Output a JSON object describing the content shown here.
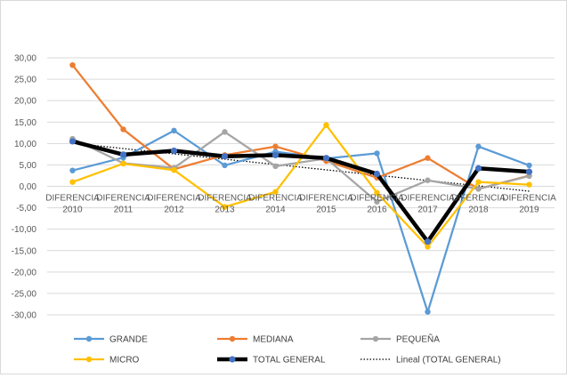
{
  "chart_data": {
    "type": "line",
    "categories": [
      [
        "DIFERENCIA",
        "2010"
      ],
      [
        "DIFERENCIA",
        "2011"
      ],
      [
        "DIFERENCIA",
        "2012"
      ],
      [
        "DIFERENCIA",
        "2013"
      ],
      [
        "DIFERENCIA",
        "2014"
      ],
      [
        "DIFERENCIA",
        "2015"
      ],
      [
        "DIFERENCIA",
        "2016"
      ],
      [
        "DIFERENCIA",
        "2017"
      ],
      [
        "DIFERENCIA",
        "2018"
      ],
      [
        "DIFERENCIA",
        "2019"
      ]
    ],
    "ylim": [
      -30,
      30
    ],
    "yticks": [
      "30,00",
      "25,00",
      "20,00",
      "15,00",
      "10,00",
      "5,00",
      "0,00",
      "-5,00",
      "-10,00",
      "-15,00",
      "-20,00",
      "-25,00",
      "-30,00"
    ],
    "grid": true,
    "legend_position": "bottom",
    "series": [
      {
        "name": "GRANDE",
        "color": "#5b9bd5",
        "values": [
          3.7,
          6.7,
          13.0,
          4.9,
          8.1,
          6.5,
          7.7,
          -29.3,
          9.3,
          4.9
        ]
      },
      {
        "name": "MEDIANA",
        "color": "#ed7d31",
        "values": [
          28.3,
          13.3,
          4.0,
          7.3,
          9.3,
          5.9,
          2.0,
          6.6,
          -0.6,
          2.5
        ]
      },
      {
        "name": "PEQUEÑA",
        "color": "#a5a5a5",
        "values": [
          11.1,
          5.4,
          4.3,
          12.7,
          4.7,
          6.5,
          -3.6,
          1.4,
          -0.6,
          2.4
        ]
      },
      {
        "name": "MICRO",
        "color": "#ffc000",
        "values": [
          1.0,
          5.3,
          3.8,
          -4.8,
          -1.3,
          14.3,
          -1.5,
          -14.1,
          1.0,
          0.4
        ]
      },
      {
        "name": "TOTAL GENERAL",
        "color": "#000000",
        "marker_color": "#4472c4",
        "values": [
          10.5,
          7.4,
          8.3,
          7.0,
          7.3,
          6.6,
          2.9,
          -12.9,
          4.2,
          3.4
        ]
      }
    ],
    "trendline": {
      "name": "Lineal (TOTAL GENERAL)",
      "type": "linear",
      "of_series": "TOTAL GENERAL",
      "color": "#000000",
      "style": "dotted"
    }
  }
}
